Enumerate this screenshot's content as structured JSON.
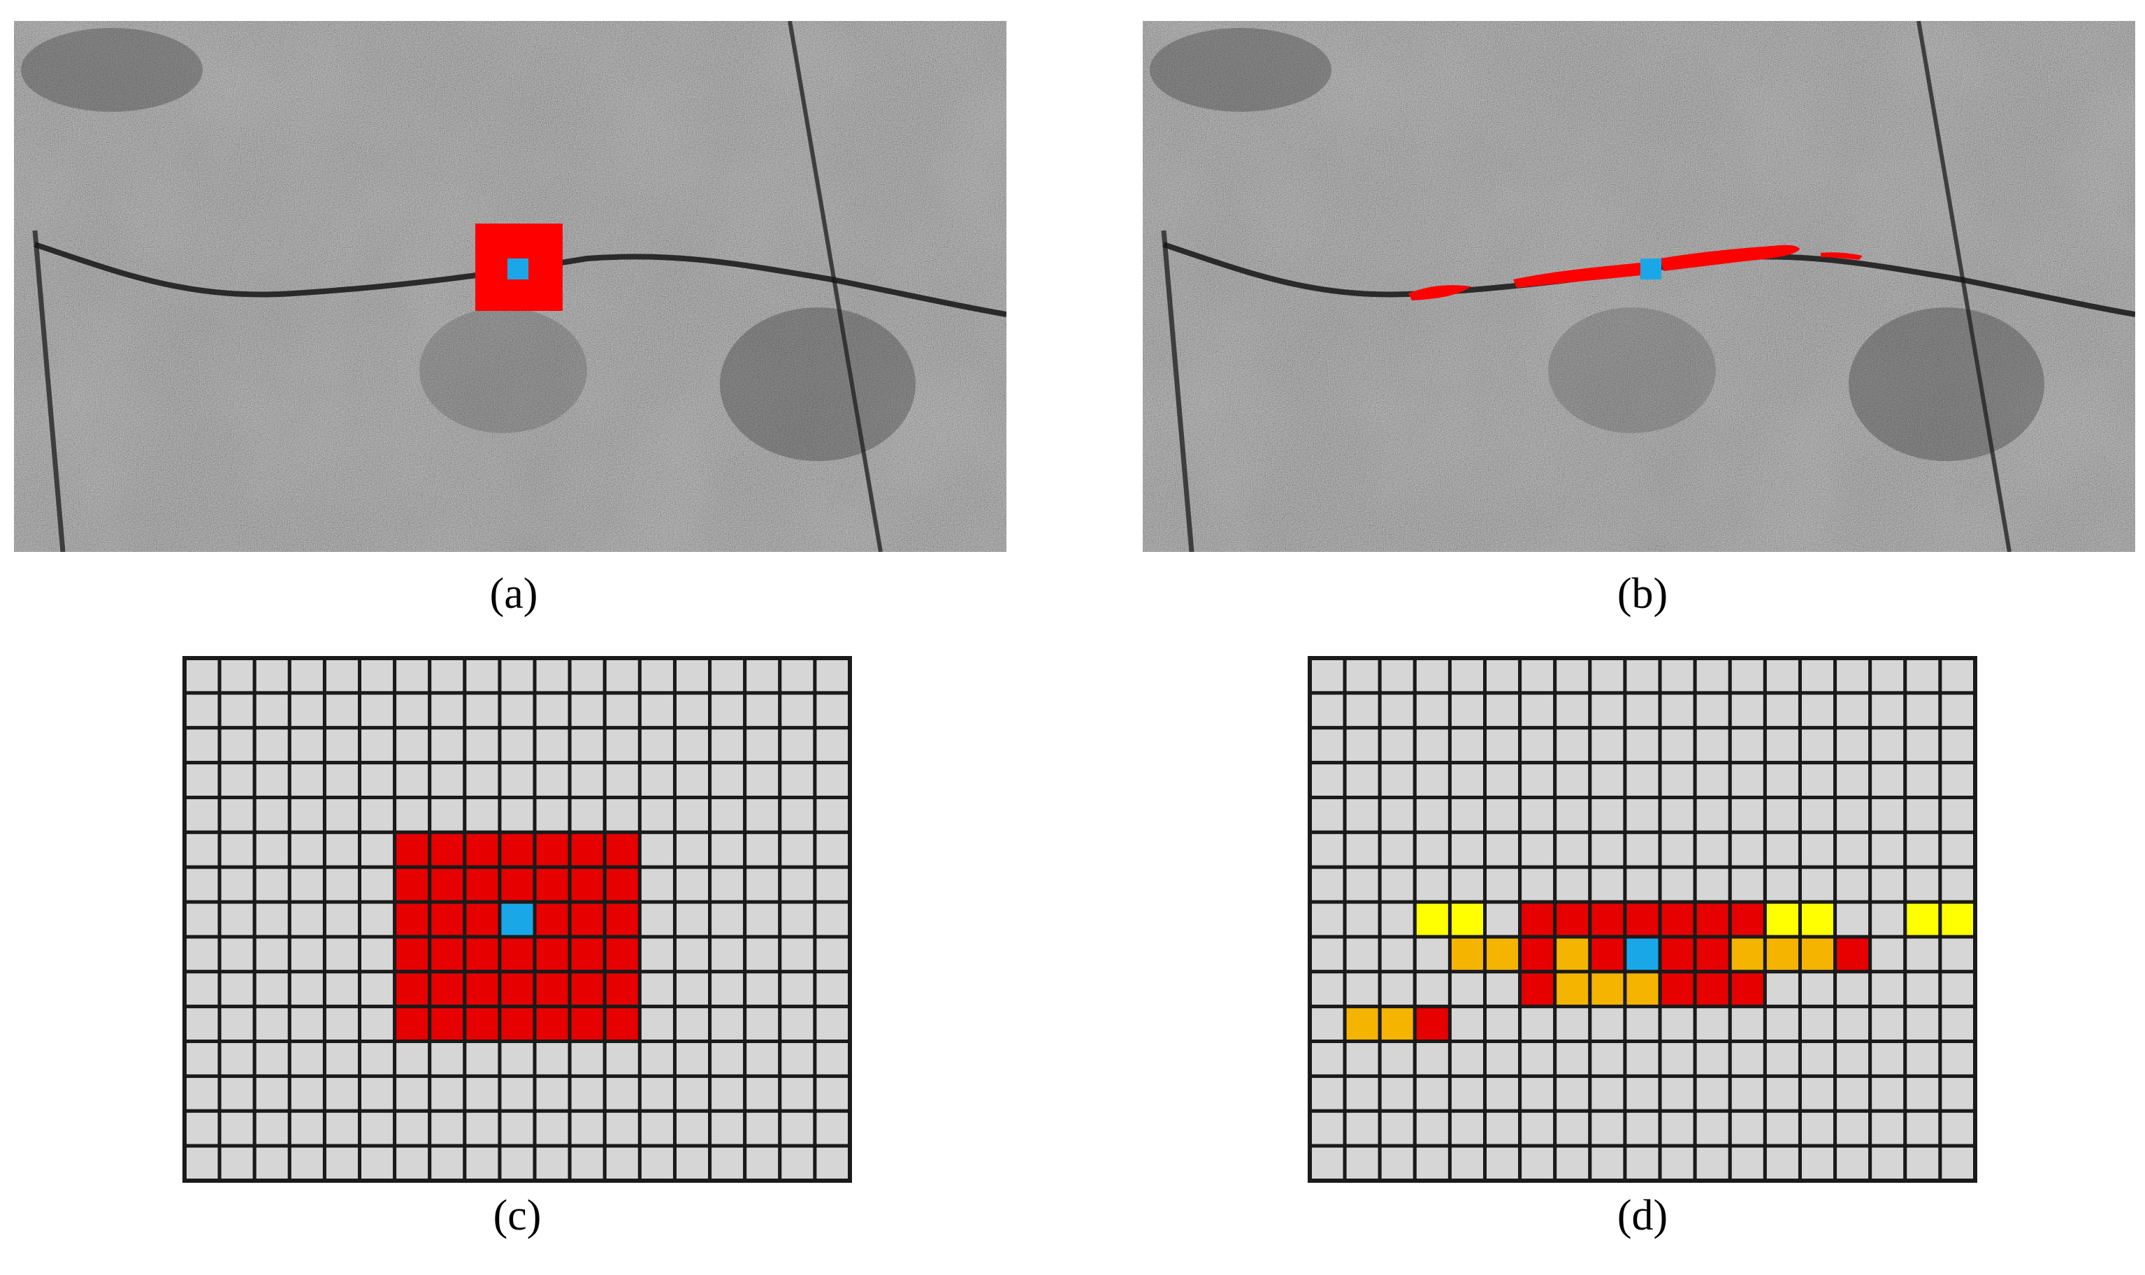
{
  "figure": {
    "panels": [
      {
        "id": "a",
        "caption": "(a)",
        "kind": "sar-image",
        "overlay": "square-window",
        "overlay_color": "#ff0000",
        "center_color": "#1aa7e8"
      },
      {
        "id": "b",
        "caption": "(b)",
        "kind": "sar-image",
        "overlay": "road-shaped-window",
        "overlay_color": "#ff0000",
        "center_color": "#1aa7e8"
      },
      {
        "id": "c",
        "caption": "(c)",
        "kind": "pixel-grid",
        "rows": 15,
        "cols": 19,
        "cells": [
          {
            "row": 5,
            "col": 6,
            "w": 7,
            "h": 6,
            "color": "red"
          },
          {
            "row": 7,
            "col": 9,
            "w": 1,
            "h": 1,
            "color": "blue"
          }
        ]
      },
      {
        "id": "d",
        "caption": "(d)",
        "kind": "pixel-grid",
        "rows": 15,
        "cols": 19,
        "cells": [
          {
            "row": 7,
            "col": 3,
            "w": 2,
            "h": 1,
            "color": "yellow"
          },
          {
            "row": 7,
            "col": 6,
            "w": 7,
            "h": 1,
            "color": "red"
          },
          {
            "row": 7,
            "col": 13,
            "w": 2,
            "h": 1,
            "color": "yellow"
          },
          {
            "row": 7,
            "col": 17,
            "w": 2,
            "h": 1,
            "color": "yellow"
          },
          {
            "row": 8,
            "col": 4,
            "w": 2,
            "h": 1,
            "color": "orange"
          },
          {
            "row": 8,
            "col": 6,
            "w": 1,
            "h": 1,
            "color": "red"
          },
          {
            "row": 8,
            "col": 7,
            "w": 1,
            "h": 1,
            "color": "orange"
          },
          {
            "row": 8,
            "col": 8,
            "w": 1,
            "h": 1,
            "color": "red"
          },
          {
            "row": 8,
            "col": 9,
            "w": 1,
            "h": 1,
            "color": "blue"
          },
          {
            "row": 8,
            "col": 10,
            "w": 3,
            "h": 1,
            "color": "red"
          },
          {
            "row": 8,
            "col": 12,
            "w": 3,
            "h": 1,
            "color": "orange"
          },
          {
            "row": 8,
            "col": 15,
            "w": 1,
            "h": 1,
            "color": "red"
          },
          {
            "row": 9,
            "col": 6,
            "w": 1,
            "h": 1,
            "color": "red"
          },
          {
            "row": 9,
            "col": 7,
            "w": 3,
            "h": 1,
            "color": "orange"
          },
          {
            "row": 9,
            "col": 10,
            "w": 3,
            "h": 1,
            "color": "red"
          },
          {
            "row": 10,
            "col": 1,
            "w": 2,
            "h": 1,
            "color": "orange"
          },
          {
            "row": 10,
            "col": 3,
            "w": 1,
            "h": 1,
            "color": "red"
          }
        ]
      }
    ],
    "colors": {
      "grid_cell": "#d6d6d6",
      "grid_line": "#1a1a1a",
      "red": "#e60000",
      "blue": "#1aa7e8",
      "yellow": "#ffff00",
      "orange": "#f5b400"
    }
  }
}
